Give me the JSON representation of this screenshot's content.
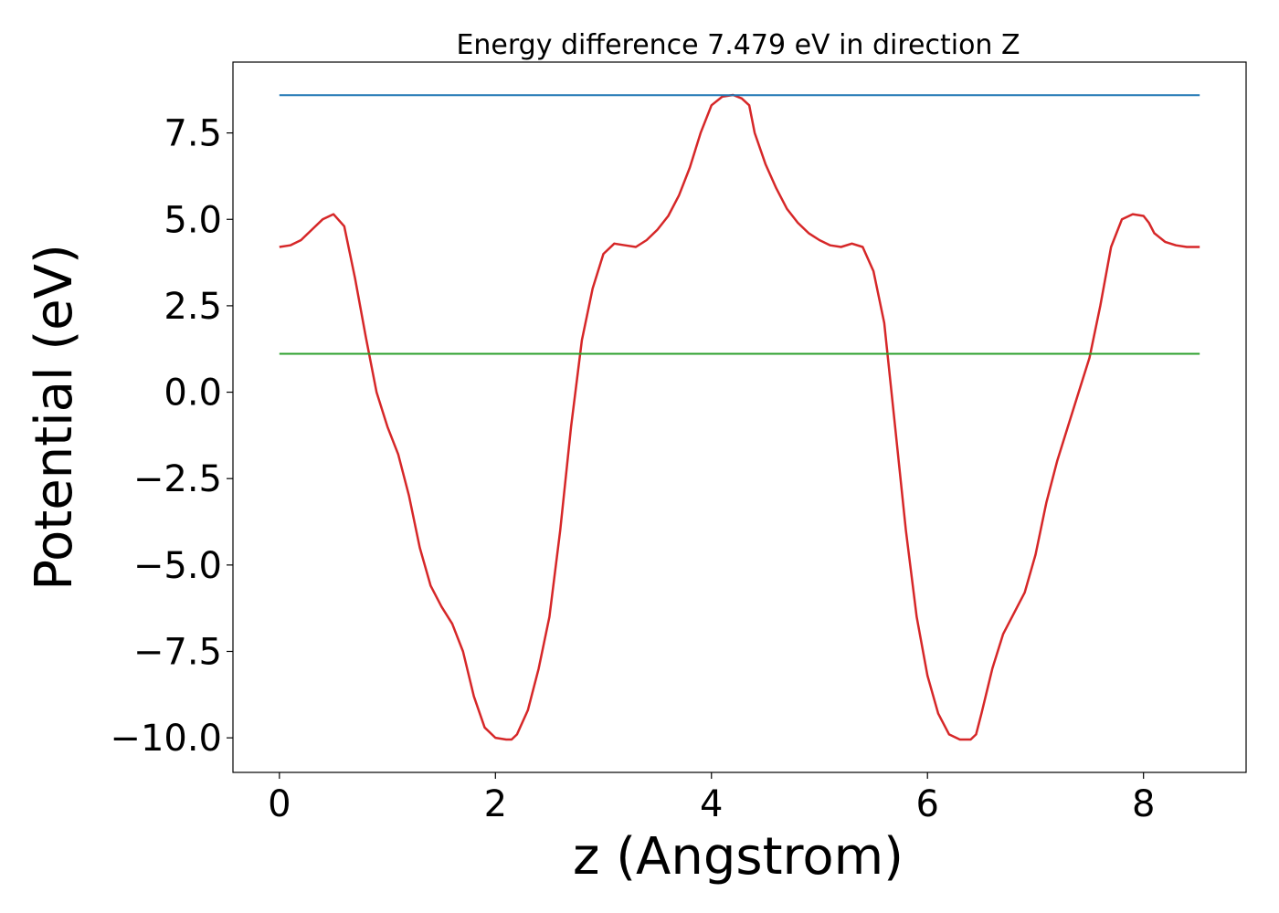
{
  "chart_data": {
    "type": "line",
    "title": "Energy difference 7.479 eV in direction Z",
    "xlabel": "z (Angstrom)",
    "ylabel": "Potential (eV)",
    "xlim": [
      -0.43,
      8.95
    ],
    "ylim": [
      -11.0,
      9.55
    ],
    "xticks": [
      0,
      2,
      4,
      6,
      8
    ],
    "xtick_labels": [
      "0",
      "2",
      "4",
      "6",
      "8"
    ],
    "yticks": [
      -10.0,
      -7.5,
      -5.0,
      -2.5,
      0.0,
      2.5,
      5.0,
      7.5
    ],
    "ytick_labels": [
      "−10.0",
      "−7.5",
      "−5.0",
      "−2.5",
      "0.0",
      "2.5",
      "5.0",
      "7.5"
    ],
    "grid": false,
    "legend": "none",
    "series": [
      {
        "color": "#d62728",
        "x": [
          0.0,
          0.1,
          0.2,
          0.3,
          0.4,
          0.5,
          0.6,
          0.7,
          0.8,
          0.9,
          1.0,
          1.1,
          1.2,
          1.3,
          1.4,
          1.5,
          1.6,
          1.7,
          1.8,
          1.9,
          2.0,
          2.1,
          2.15,
          2.2,
          2.3,
          2.4,
          2.5,
          2.6,
          2.7,
          2.8,
          2.9,
          3.0,
          3.1,
          3.2,
          3.3,
          3.4,
          3.5,
          3.6,
          3.7,
          3.8,
          3.9,
          4.0,
          4.1,
          4.2,
          4.28,
          4.35,
          4.4,
          4.5,
          4.6,
          4.7,
          4.8,
          4.9,
          5.0,
          5.1,
          5.2,
          5.3,
          5.4,
          5.5,
          5.6,
          5.7,
          5.8,
          5.9,
          6.0,
          6.1,
          6.2,
          6.3,
          6.4,
          6.45,
          6.5,
          6.6,
          6.7,
          6.8,
          6.9,
          7.0,
          7.1,
          7.2,
          7.3,
          7.4,
          7.5,
          7.6,
          7.7,
          7.8,
          7.9,
          8.0,
          8.05,
          8.1,
          8.2,
          8.3,
          8.4,
          8.52
        ],
        "y": [
          4.2,
          4.25,
          4.4,
          4.7,
          5.0,
          5.15,
          4.8,
          3.3,
          1.6,
          0.0,
          -1.0,
          -1.8,
          -3.0,
          -4.5,
          -5.6,
          -6.2,
          -6.7,
          -7.5,
          -8.8,
          -9.7,
          -10.0,
          -10.05,
          -10.05,
          -9.9,
          -9.2,
          -8.0,
          -6.5,
          -4.0,
          -1.0,
          1.5,
          3.0,
          4.0,
          4.3,
          4.25,
          4.2,
          4.4,
          4.7,
          5.1,
          5.7,
          6.5,
          7.5,
          8.3,
          8.55,
          8.6,
          8.5,
          8.3,
          7.5,
          6.6,
          5.9,
          5.3,
          4.9,
          4.6,
          4.4,
          4.25,
          4.2,
          4.3,
          4.2,
          3.5,
          2.0,
          -1.0,
          -4.0,
          -6.5,
          -8.2,
          -9.3,
          -9.9,
          -10.05,
          -10.05,
          -9.9,
          -9.3,
          -8.0,
          -7.0,
          -6.4,
          -5.8,
          -4.7,
          -3.2,
          -2.0,
          -1.0,
          0.0,
          1.0,
          2.5,
          4.2,
          5.0,
          5.15,
          5.1,
          4.9,
          4.6,
          4.35,
          4.25,
          4.2,
          4.2
        ]
      },
      {
        "color": "#1f77b4",
        "x": [
          0.0,
          8.52
        ],
        "y": [
          8.59,
          8.59
        ]
      },
      {
        "color": "#2ca02c",
        "x": [
          0.0,
          8.52
        ],
        "y": [
          1.11,
          1.11
        ]
      }
    ]
  }
}
